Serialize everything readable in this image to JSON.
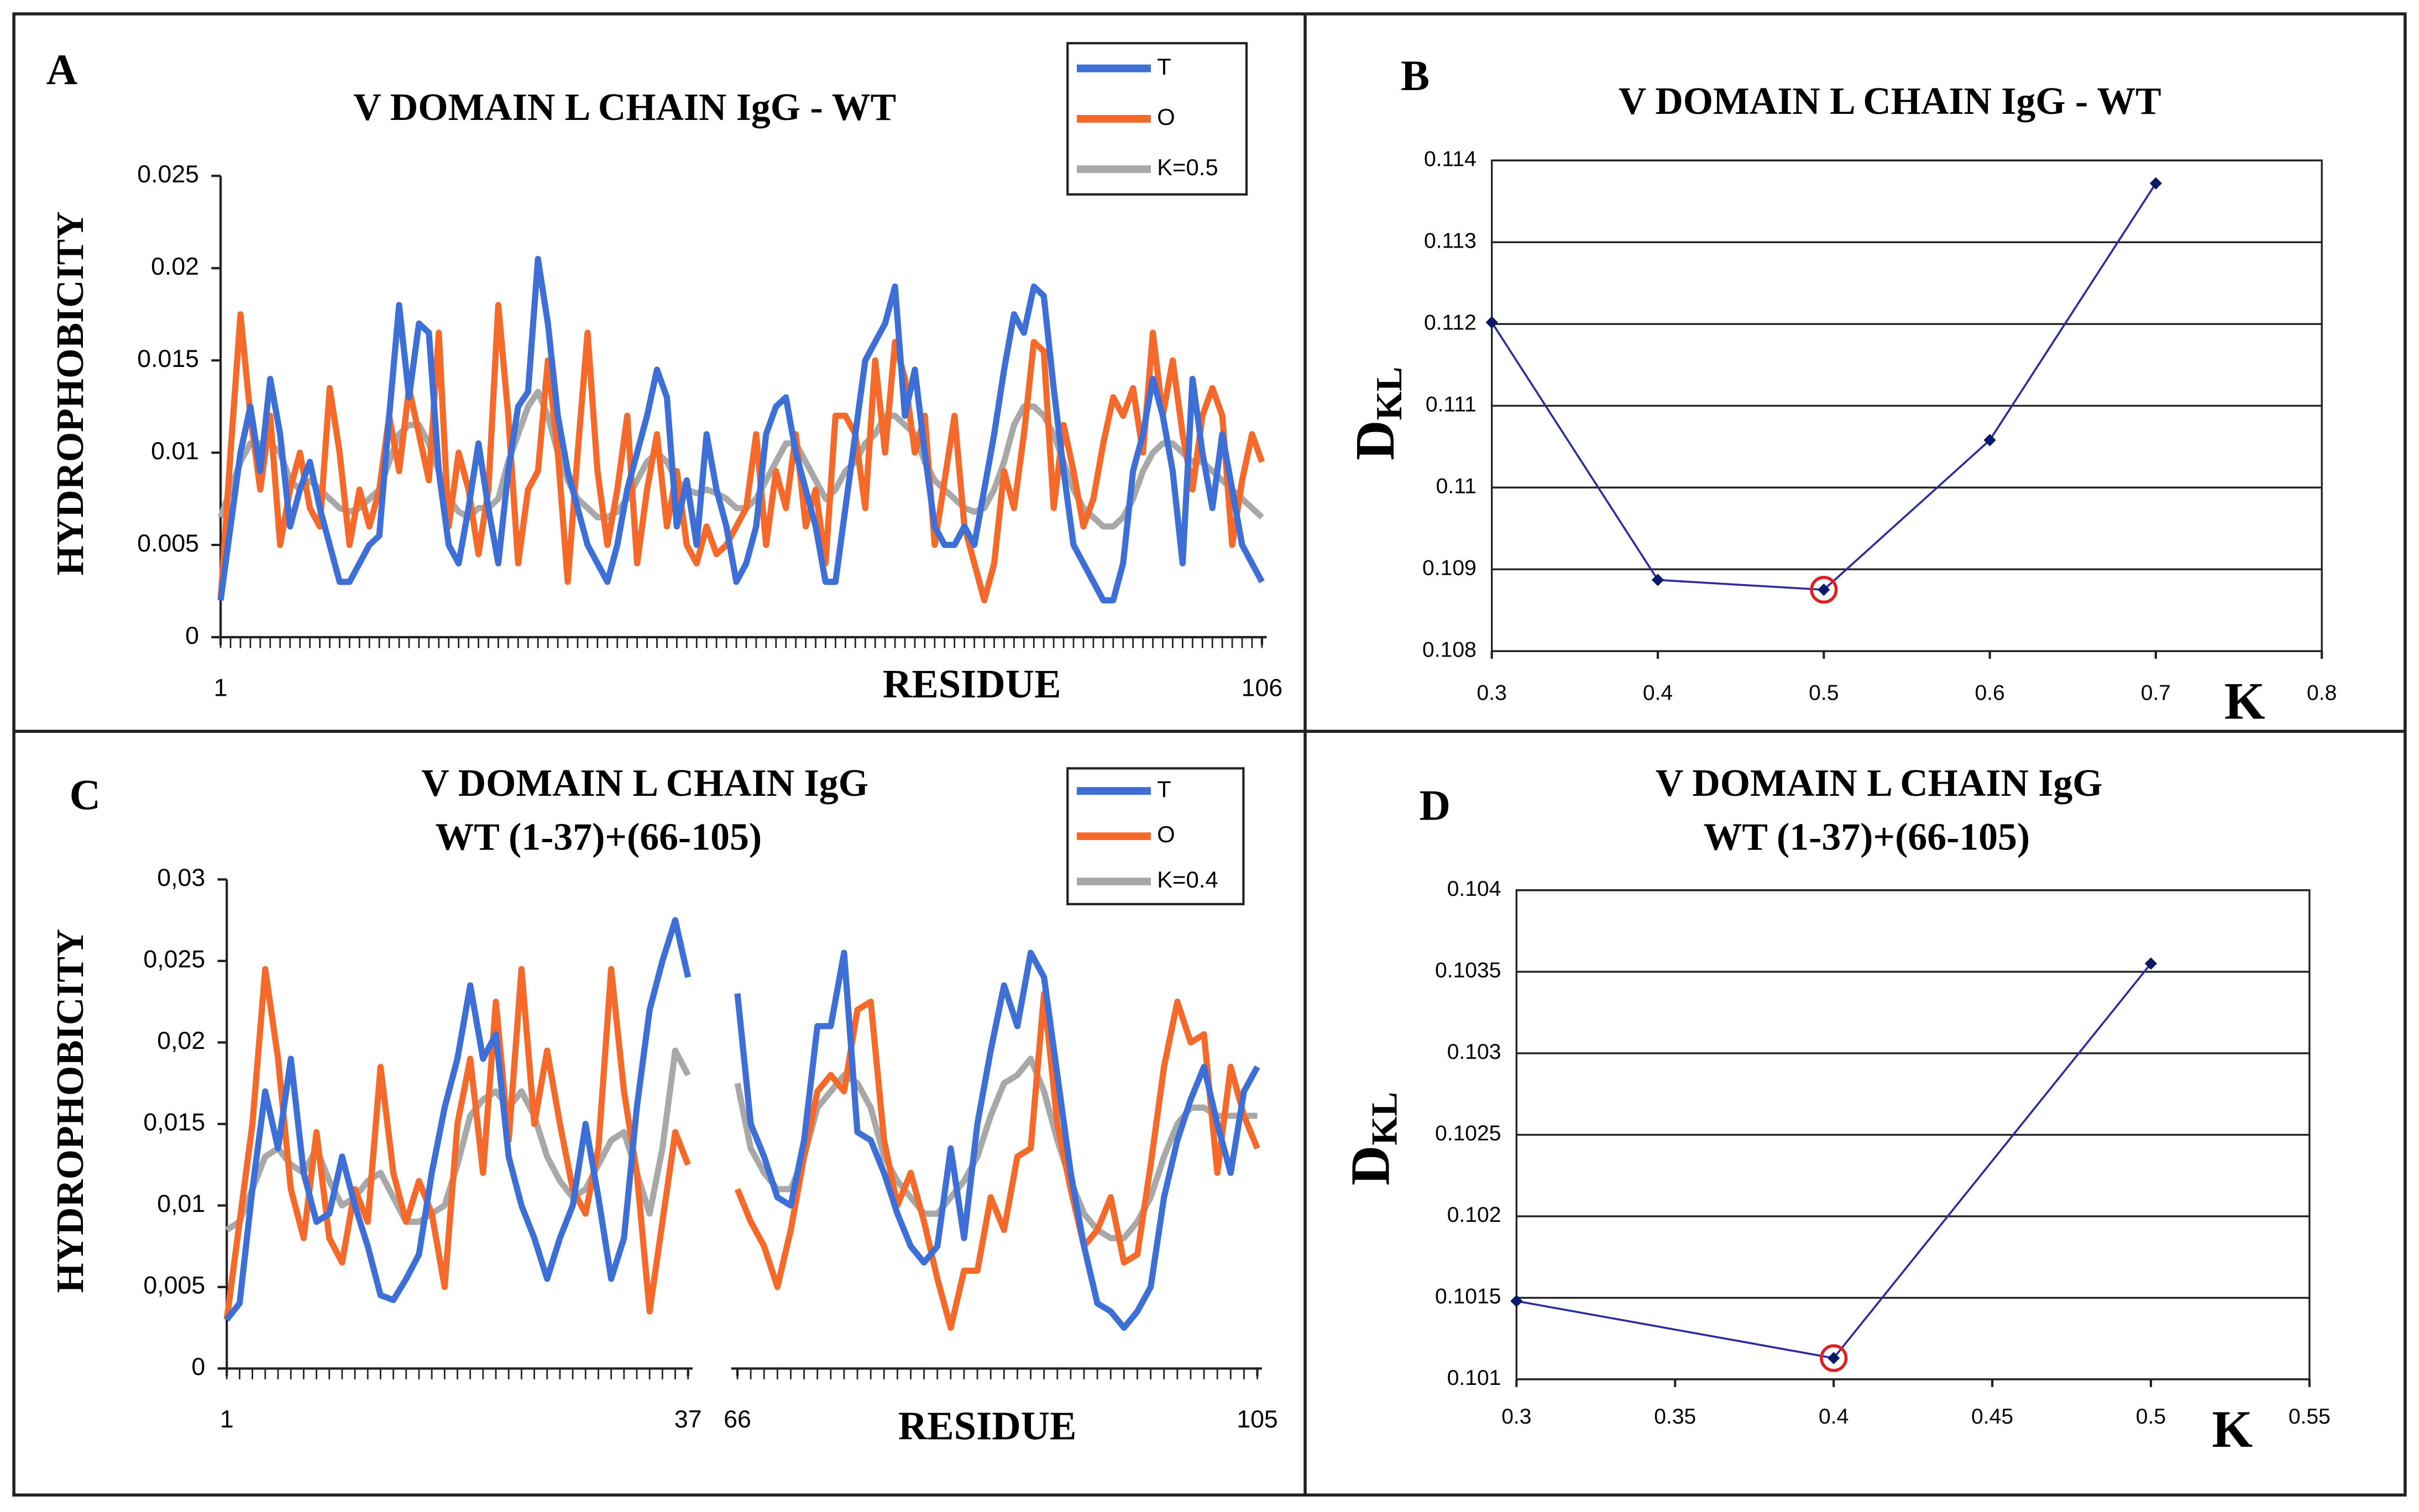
{
  "chart_data": [
    {
      "type": "line",
      "panel": "A",
      "title": "V DOMAIN L CHAIN IgG  - WT",
      "y_label": "HYDROPHOBICITY",
      "x_label": "RESIDUE",
      "x": [
        1,
        2,
        3,
        4,
        5,
        6,
        7,
        8,
        9,
        10,
        11,
        12,
        13,
        14,
        15,
        16,
        17,
        18,
        19,
        20,
        21,
        22,
        23,
        24,
        25,
        26,
        27,
        28,
        29,
        30,
        31,
        32,
        33,
        34,
        35,
        36,
        37,
        38,
        39,
        40,
        41,
        42,
        43,
        44,
        45,
        46,
        47,
        48,
        49,
        50,
        51,
        52,
        53,
        54,
        55,
        56,
        57,
        58,
        59,
        60,
        61,
        62,
        63,
        64,
        65,
        66,
        67,
        68,
        69,
        70,
        71,
        72,
        73,
        74,
        75,
        76,
        77,
        78,
        79,
        80,
        81,
        82,
        83,
        84,
        85,
        86,
        87,
        88,
        89,
        90,
        91,
        92,
        93,
        94,
        95,
        96,
        97,
        98,
        99,
        100,
        101,
        102,
        103,
        104,
        105,
        106
      ],
      "series": [
        {
          "name": "T",
          "color": "#3d6fd6",
          "values": [
            0.002,
            0.006,
            0.01,
            0.0125,
            0.009,
            0.014,
            0.011,
            0.006,
            0.008,
            0.0095,
            0.007,
            0.005,
            0.003,
            0.003,
            0.004,
            0.005,
            0.0055,
            0.012,
            0.018,
            0.013,
            0.017,
            0.0165,
            0.009,
            0.005,
            0.004,
            0.007,
            0.0105,
            0.007,
            0.004,
            0.009,
            0.0125,
            0.0133,
            0.0205,
            0.017,
            0.012,
            0.009,
            0.007,
            0.005,
            0.004,
            0.003,
            0.005,
            0.008,
            0.01,
            0.012,
            0.0145,
            0.013,
            0.006,
            0.0085,
            0.005,
            0.011,
            0.008,
            0.006,
            0.003,
            0.004,
            0.006,
            0.011,
            0.0125,
            0.013,
            0.01,
            0.008,
            0.006,
            0.003,
            0.003,
            0.007,
            0.011,
            0.015,
            0.016,
            0.017,
            0.019,
            0.012,
            0.0145,
            0.01,
            0.006,
            0.005,
            0.005,
            0.006,
            0.005,
            0.008,
            0.011,
            0.0145,
            0.0175,
            0.0165,
            0.019,
            0.0185,
            0.0135,
            0.009,
            0.005,
            0.004,
            0.003,
            0.002,
            0.002,
            0.004,
            0.009,
            0.011,
            0.014,
            0.012,
            0.009,
            0.004,
            0.014,
            0.01,
            0.007,
            0.011,
            0.008,
            0.005,
            0.004,
            0.003
          ]
        },
        {
          "name": "O",
          "color": "#f5692a",
          "values": [
            0.002,
            0.01,
            0.0175,
            0.012,
            0.008,
            0.012,
            0.005,
            0.008,
            0.01,
            0.007,
            0.006,
            0.0135,
            0.01,
            0.005,
            0.008,
            0.006,
            0.008,
            0.012,
            0.009,
            0.0135,
            0.011,
            0.0085,
            0.0165,
            0.006,
            0.01,
            0.008,
            0.0045,
            0.008,
            0.018,
            0.012,
            0.004,
            0.008,
            0.009,
            0.015,
            0.01,
            0.003,
            0.01,
            0.0165,
            0.009,
            0.005,
            0.008,
            0.012,
            0.004,
            0.008,
            0.011,
            0.006,
            0.009,
            0.005,
            0.004,
            0.006,
            0.0045,
            0.005,
            0.006,
            0.007,
            0.011,
            0.005,
            0.009,
            0.007,
            0.011,
            0.006,
            0.008,
            0.004,
            0.012,
            0.012,
            0.011,
            0.007,
            0.015,
            0.01,
            0.016,
            0.014,
            0.01,
            0.012,
            0.005,
            0.0085,
            0.012,
            0.006,
            0.004,
            0.002,
            0.004,
            0.009,
            0.007,
            0.011,
            0.016,
            0.0155,
            0.007,
            0.0115,
            0.009,
            0.006,
            0.0075,
            0.0105,
            0.013,
            0.012,
            0.0135,
            0.01,
            0.0165,
            0.012,
            0.015,
            0.011,
            0.008,
            0.012,
            0.0135,
            0.012,
            0.005,
            0.0085,
            0.011,
            0.0095
          ]
        },
        {
          "name": "K=0.5",
          "color": "#a8a8a8",
          "values": [
            0.0065,
            0.008,
            0.0095,
            0.0105,
            0.0105,
            0.0105,
            0.01,
            0.0085,
            0.008,
            0.0085,
            0.008,
            0.0075,
            0.007,
            0.0068,
            0.007,
            0.0075,
            0.008,
            0.0095,
            0.011,
            0.0115,
            0.0115,
            0.0105,
            0.009,
            0.0075,
            0.0068,
            0.0065,
            0.007,
            0.007,
            0.0075,
            0.0095,
            0.011,
            0.0125,
            0.0133,
            0.012,
            0.01,
            0.0085,
            0.0075,
            0.007,
            0.0065,
            0.0065,
            0.0068,
            0.0075,
            0.0085,
            0.0095,
            0.01,
            0.0095,
            0.0085,
            0.008,
            0.0078,
            0.008,
            0.0078,
            0.0075,
            0.007,
            0.007,
            0.0075,
            0.0085,
            0.0095,
            0.0105,
            0.0105,
            0.0095,
            0.0085,
            0.0075,
            0.008,
            0.009,
            0.0095,
            0.0105,
            0.011,
            0.012,
            0.012,
            0.0115,
            0.011,
            0.0095,
            0.0085,
            0.008,
            0.0075,
            0.007,
            0.0068,
            0.007,
            0.008,
            0.0095,
            0.0115,
            0.0125,
            0.0125,
            0.012,
            0.011,
            0.0095,
            0.008,
            0.007,
            0.0065,
            0.006,
            0.006,
            0.0065,
            0.0075,
            0.009,
            0.01,
            0.0105,
            0.0105,
            0.01,
            0.0095,
            0.0095,
            0.009,
            0.0085,
            0.008,
            0.0075,
            0.007,
            0.0065
          ]
        }
      ],
      "xlim": [
        [
          1,
          106
        ]
      ],
      "xticks": [
        1,
        106
      ],
      "ylim": [
        0,
        0.025
      ],
      "yticks": [
        0,
        0.005,
        0.01,
        0.015,
        0.02,
        0.025
      ],
      "legend": "top-right"
    },
    {
      "type": "line",
      "panel": "B",
      "title": "V DOMAIN L CHAIN IgG  - WT",
      "y_label": "D",
      "y_label_sub": "KL",
      "x_label": "K",
      "x": [
        0.3,
        0.4,
        0.5,
        0.6,
        0.7
      ],
      "values": [
        0.11202,
        0.10887,
        0.10875,
        0.11058,
        0.11372
      ],
      "color": "#2c2ca0",
      "marker_color": "#0b1a66",
      "highlight": 2,
      "highlight_color": "#e02020",
      "xlim": [
        [
          0.3,
          0.8
        ]
      ],
      "xticks": [
        0.3,
        0.4,
        0.5,
        0.6,
        0.7,
        0.8
      ],
      "ylim": [
        0.108,
        0.114
      ],
      "yticks": [
        0.108,
        0.109,
        0.11,
        0.111,
        0.112,
        0.113,
        0.114
      ],
      "grid": true
    },
    {
      "type": "line",
      "panel": "C",
      "title": [
        "V DOMAIN L CHAIN IgG",
        "WT (1-37)+(66-105)"
      ],
      "y_label": "HYDROPHOBICITY",
      "x_label": "RESIDUE",
      "x": [
        1,
        2,
        3,
        4,
        5,
        6,
        7,
        8,
        9,
        10,
        11,
        12,
        13,
        14,
        15,
        16,
        17,
        18,
        19,
        20,
        21,
        22,
        23,
        24,
        25,
        26,
        27,
        28,
        29,
        30,
        31,
        32,
        33,
        34,
        35,
        36,
        37,
        66,
        67,
        68,
        69,
        70,
        71,
        72,
        73,
        74,
        75,
        76,
        77,
        78,
        79,
        80,
        81,
        82,
        83,
        84,
        85,
        86,
        87,
        88,
        89,
        90,
        91,
        92,
        93,
        94,
        95,
        96,
        97,
        98,
        99,
        100,
        101,
        102,
        103,
        104,
        105
      ],
      "series": [
        {
          "name": "T",
          "color": "#3d6fd6",
          "values": [
            0.003,
            0.004,
            0.011,
            0.017,
            0.0135,
            0.019,
            0.012,
            0.009,
            0.0095,
            0.013,
            0.01,
            0.0075,
            0.0045,
            0.0042,
            0.0055,
            0.007,
            0.012,
            0.016,
            0.019,
            0.0235,
            0.019,
            0.0205,
            0.013,
            0.01,
            0.008,
            0.0055,
            0.008,
            0.01,
            0.015,
            0.0105,
            0.0055,
            0.008,
            0.016,
            0.022,
            0.025,
            0.0275,
            0.024,
            0.023,
            0.015,
            0.013,
            0.0105,
            0.01,
            0.014,
            0.021,
            0.021,
            0.0255,
            0.0145,
            0.014,
            0.012,
            0.0095,
            0.0075,
            0.0065,
            0.0075,
            0.0135,
            0.008,
            0.015,
            0.0195,
            0.0235,
            0.021,
            0.0255,
            0.024,
            0.018,
            0.012,
            0.0075,
            0.004,
            0.0035,
            0.0025,
            0.0035,
            0.005,
            0.0105,
            0.014,
            0.0165,
            0.0185,
            0.015,
            0.012,
            0.017,
            0.0185
          ]
        },
        {
          "name": "O",
          "color": "#f5692a",
          "values": [
            0.003,
            0.009,
            0.015,
            0.0245,
            0.019,
            0.011,
            0.008,
            0.0145,
            0.008,
            0.0065,
            0.011,
            0.009,
            0.0185,
            0.012,
            0.009,
            0.0115,
            0.0095,
            0.005,
            0.015,
            0.019,
            0.012,
            0.0225,
            0.014,
            0.0245,
            0.015,
            0.0195,
            0.015,
            0.011,
            0.0095,
            0.0135,
            0.0245,
            0.017,
            0.012,
            0.0035,
            0.009,
            0.0145,
            0.0125,
            0.011,
            0.009,
            0.0075,
            0.005,
            0.0085,
            0.013,
            0.017,
            0.018,
            0.017,
            0.022,
            0.0225,
            0.014,
            0.01,
            0.012,
            0.009,
            0.0055,
            0.0025,
            0.006,
            0.006,
            0.0105,
            0.0085,
            0.013,
            0.0135,
            0.023,
            0.015,
            0.011,
            0.0075,
            0.0085,
            0.0105,
            0.0065,
            0.007,
            0.0125,
            0.0185,
            0.0225,
            0.02,
            0.0205,
            0.012,
            0.0185,
            0.0155,
            0.0135
          ]
        },
        {
          "name": "K=0.4",
          "color": "#a8a8a8",
          "values": [
            0.0085,
            0.009,
            0.011,
            0.013,
            0.0135,
            0.0125,
            0.012,
            0.0135,
            0.0115,
            0.01,
            0.0105,
            0.0115,
            0.012,
            0.0105,
            0.009,
            0.009,
            0.0095,
            0.01,
            0.0125,
            0.0155,
            0.0165,
            0.017,
            0.016,
            0.017,
            0.0155,
            0.013,
            0.0115,
            0.0105,
            0.011,
            0.0125,
            0.014,
            0.0145,
            0.012,
            0.0095,
            0.0135,
            0.0195,
            0.018,
            0.0175,
            0.0135,
            0.012,
            0.011,
            0.011,
            0.013,
            0.016,
            0.017,
            0.018,
            0.0175,
            0.016,
            0.013,
            0.0115,
            0.0105,
            0.0095,
            0.0095,
            0.0105,
            0.0115,
            0.013,
            0.0155,
            0.0175,
            0.018,
            0.019,
            0.017,
            0.014,
            0.0115,
            0.0095,
            0.0085,
            0.008,
            0.008,
            0.009,
            0.0105,
            0.013,
            0.015,
            0.016,
            0.016,
            0.0155,
            0.0155,
            0.0155,
            0.0155
          ]
        }
      ],
      "xlim": [
        [
          1,
          37
        ],
        [
          66,
          105
        ]
      ],
      "xticks": [
        1,
        37,
        66,
        105
      ],
      "ylim": [
        0,
        0.03
      ],
      "yticks": [
        0,
        {
          "value": 0.005,
          "label": "0,005"
        },
        {
          "value": 0.01,
          "label": "0,01"
        },
        {
          "value": 0.015,
          "label": "0,015"
        },
        {
          "value": 0.02,
          "label": "0,02"
        },
        {
          "value": 0.025,
          "label": "0,025"
        },
        {
          "value": 0.03,
          "label": "0,03"
        }
      ],
      "legend": "top-right"
    },
    {
      "type": "line",
      "panel": "D",
      "title": [
        "V DOMAIN L CHAIN IgG",
        "WT (1-37)+(66-105)"
      ],
      "y_label": "D",
      "y_label_sub": "KL",
      "x_label": "K",
      "x": [
        0.3,
        0.4,
        0.5
      ],
      "values": [
        0.10148,
        0.10113,
        0.10355
      ],
      "color": "#2c2ca0",
      "marker_color": "#0b1a66",
      "highlight": 1,
      "highlight_color": "#e02020",
      "xlim": [
        [
          0.3,
          0.55
        ]
      ],
      "xticks": [
        0.3,
        0.35,
        0.4,
        0.45,
        0.5,
        0.55
      ],
      "ylim": [
        0.101,
        0.104
      ],
      "yticks": [
        0.101,
        0.1015,
        0.102,
        0.1025,
        0.103,
        0.1035,
        0.104
      ],
      "grid": true
    }
  ]
}
